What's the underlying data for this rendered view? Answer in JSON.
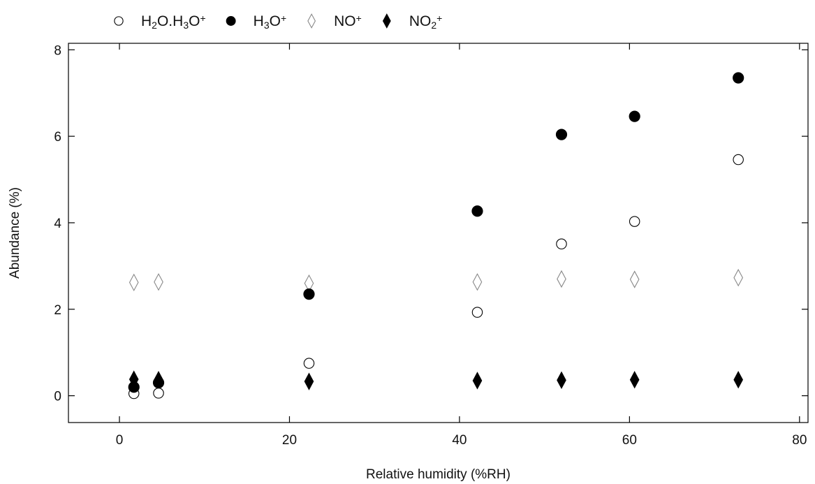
{
  "chart_data": {
    "type": "scatter",
    "xlabel": "Relative humidity (%RH)",
    "ylabel": "Abundance (%)",
    "xlim": [
      -6,
      81
    ],
    "ylim": [
      -0.62,
      8.15
    ],
    "x_ticks": [
      0,
      20,
      40,
      60,
      80
    ],
    "y_ticks": [
      0,
      2,
      4,
      6,
      8
    ],
    "grid": false,
    "legend_position": "top",
    "series": [
      {
        "name": "H2O.H3O+",
        "marker": "open-circle",
        "color": "#000000",
        "points": [
          [
            1.7,
            0.05
          ],
          [
            4.6,
            0.06
          ],
          [
            22.3,
            0.75
          ],
          [
            42.1,
            1.93
          ],
          [
            52.0,
            3.51
          ],
          [
            60.6,
            4.03
          ],
          [
            72.8,
            5.46
          ]
        ]
      },
      {
        "name": "H3O+",
        "marker": "filled-circle",
        "color": "#000000",
        "points": [
          [
            1.7,
            0.2
          ],
          [
            4.6,
            0.3
          ],
          [
            22.3,
            2.35
          ],
          [
            42.1,
            4.27
          ],
          [
            52.0,
            6.04
          ],
          [
            60.6,
            6.46
          ],
          [
            72.8,
            7.35
          ]
        ]
      },
      {
        "name": "NO+",
        "marker": "open-diamond",
        "color": "#888888",
        "points": [
          [
            1.7,
            2.62
          ],
          [
            4.6,
            2.63
          ],
          [
            22.3,
            2.6
          ],
          [
            42.1,
            2.63
          ],
          [
            52.0,
            2.7
          ],
          [
            60.6,
            2.69
          ],
          [
            72.8,
            2.73
          ]
        ]
      },
      {
        "name": "NO2+",
        "marker": "filled-diamond",
        "color": "#000000",
        "points": [
          [
            1.7,
            0.38
          ],
          [
            4.6,
            0.37
          ],
          [
            22.3,
            0.33
          ],
          [
            42.1,
            0.35
          ],
          [
            52.0,
            0.36
          ],
          [
            60.6,
            0.37
          ],
          [
            72.8,
            0.37
          ]
        ]
      }
    ],
    "legend": [
      {
        "series": "H2O.H3O+",
        "label": [
          [
            "H",
            ""
          ],
          [
            "2",
            "sub"
          ],
          [
            "O.H",
            ""
          ],
          [
            "3",
            "sub"
          ],
          [
            "O",
            ""
          ],
          [
            "+",
            "sup"
          ]
        ]
      },
      {
        "series": "H3O+",
        "label": [
          [
            "H",
            ""
          ],
          [
            "3",
            "sub"
          ],
          [
            "O",
            ""
          ],
          [
            "+",
            "sup"
          ]
        ]
      },
      {
        "series": "NO+",
        "label": [
          [
            "NO",
            ""
          ],
          [
            "+",
            "sup"
          ]
        ]
      },
      {
        "series": "NO2+",
        "label": [
          [
            "NO",
            ""
          ],
          [
            "2",
            "sub"
          ],
          [
            "+",
            "sup"
          ]
        ]
      }
    ]
  }
}
